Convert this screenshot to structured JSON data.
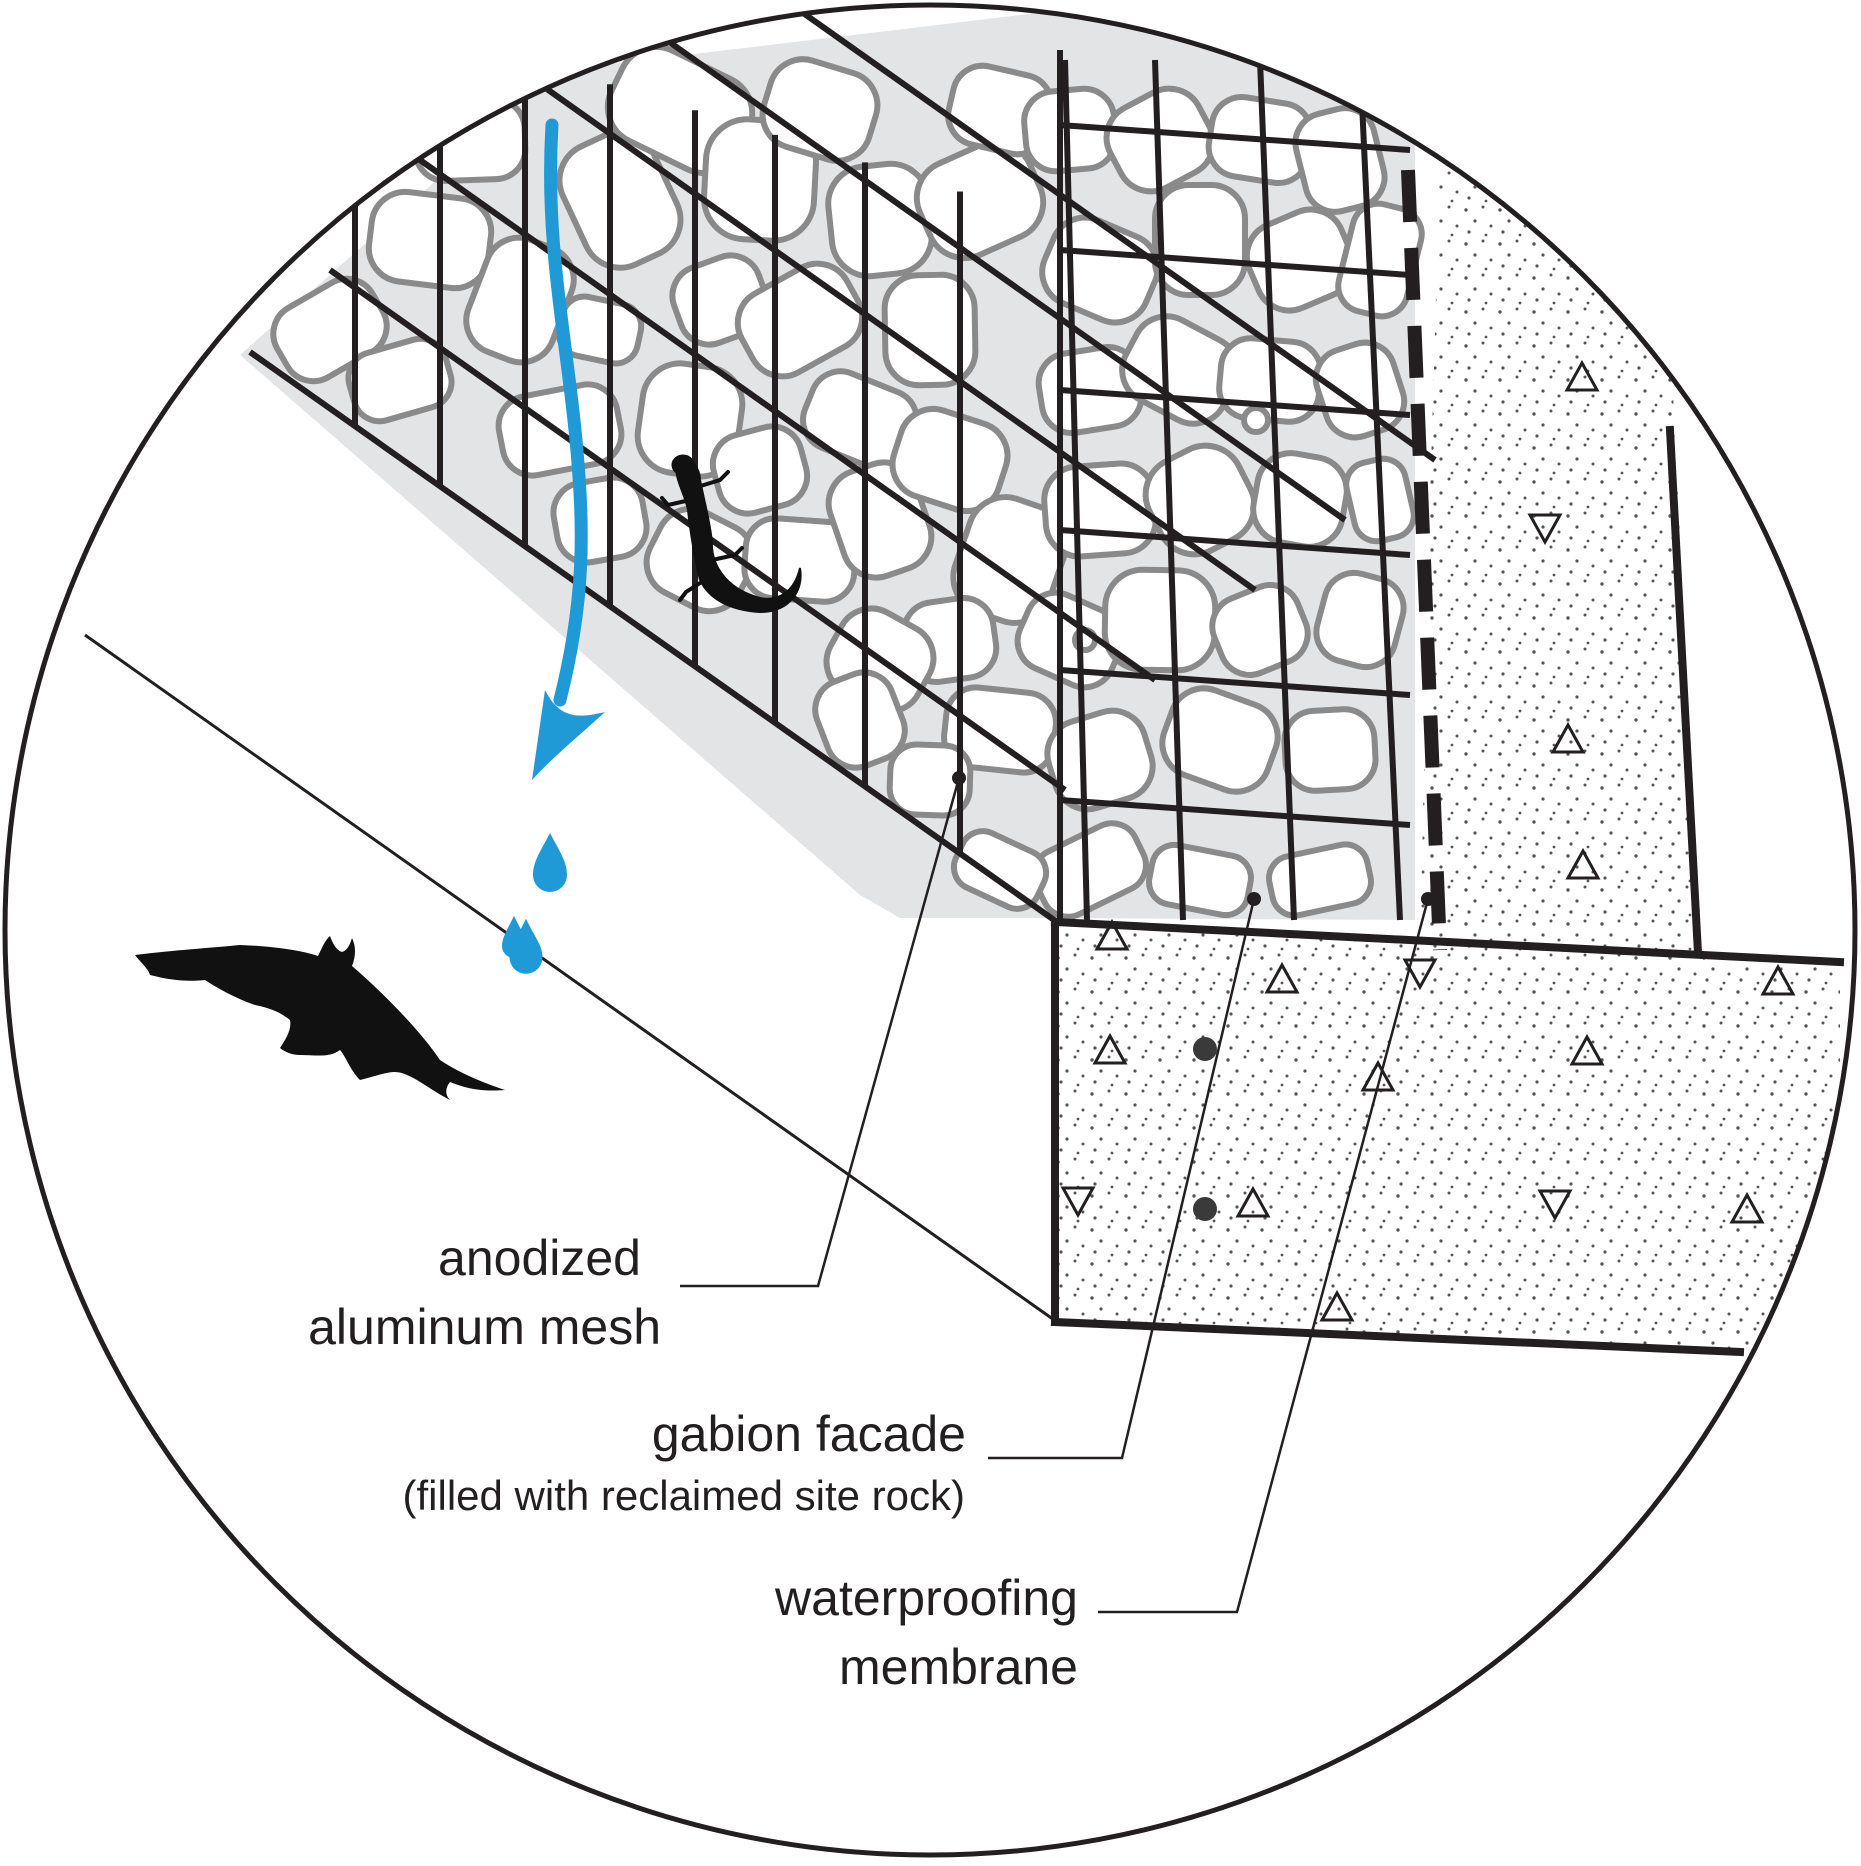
{
  "labels": {
    "mesh_line1": "anodized",
    "mesh_line2": "aluminum mesh",
    "gabion_line1": "gabion facade",
    "gabion_line2": "(filled with reclaimed site rock)",
    "membrane_line1": "waterproofing",
    "membrane_line2": "membrane"
  },
  "icons": [
    "water-arrow-icon",
    "water-drop-icon",
    "salamander-icon",
    "bat-icon"
  ],
  "colors": {
    "water": "#1f9ad6",
    "ink": "#231f20",
    "rock_fill": "#e3e4e6",
    "rock_stroke": "#8a8a8a",
    "leader_dot": "#333333"
  }
}
